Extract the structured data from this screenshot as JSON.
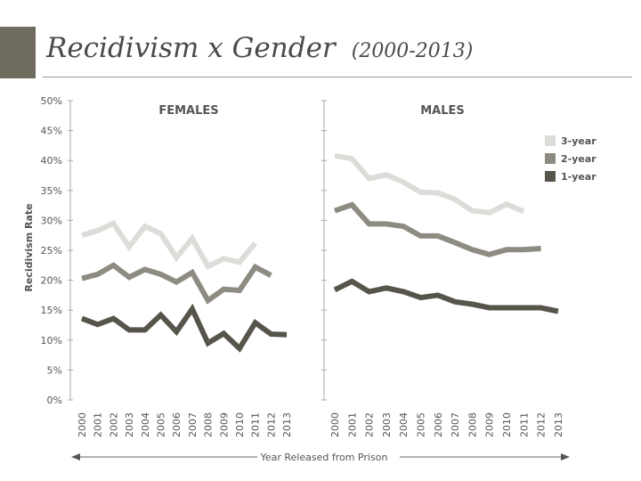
{
  "header": {
    "title": "Recidivism x Gender",
    "subtitle": "(2000-2013)"
  },
  "colors": {
    "three_year": "#dcdcd8",
    "two_year": "#8e8c82",
    "one_year": "#56544b",
    "axis": "#aaaaaa",
    "accent": "#6f6b5e",
    "text": "#555555"
  },
  "chart_data": {
    "type": "line",
    "ylabel": "Recidivism Rate",
    "xlabel": "Year Released from Prison",
    "ylim": [
      0,
      50
    ],
    "yticks": [
      "0%",
      "5%",
      "10%",
      "15%",
      "20%",
      "25%",
      "30%",
      "35%",
      "40%",
      "45%",
      "50%"
    ],
    "categories": [
      "2000",
      "2001",
      "2002",
      "2003",
      "2004",
      "2005",
      "2006",
      "2007",
      "2008",
      "2009",
      "2010",
      "2011",
      "2012",
      "2013"
    ],
    "legend": {
      "position": "right",
      "entries": [
        "3-year",
        "2-year",
        "1-year"
      ]
    },
    "panels": [
      {
        "name": "FEMALES",
        "series": [
          {
            "name": "3-year",
            "values": [
              27.5,
              28.3,
              29.5,
              25.6,
              29.0,
              27.8,
              23.8,
              27.0,
              22.3,
              23.6,
              23.0,
              26.2,
              null,
              null
            ]
          },
          {
            "name": "2-year",
            "values": [
              20.3,
              21.0,
              22.5,
              20.5,
              21.8,
              21.0,
              19.7,
              21.3,
              16.6,
              18.5,
              18.3,
              22.2,
              20.8,
              null
            ]
          },
          {
            "name": "1-year",
            "values": [
              13.6,
              12.6,
              13.6,
              11.7,
              11.7,
              14.2,
              11.4,
              15.2,
              9.5,
              11.1,
              8.6,
              12.9,
              11.0,
              10.9
            ]
          }
        ]
      },
      {
        "name": "MALES",
        "series": [
          {
            "name": "3-year",
            "values": [
              40.8,
              40.3,
              37.0,
              37.6,
              36.4,
              34.7,
              34.6,
              33.5,
              31.6,
              31.3,
              32.7,
              31.5,
              null,
              null
            ]
          },
          {
            "name": "2-year",
            "values": [
              31.6,
              32.6,
              29.4,
              29.4,
              29.0,
              27.4,
              27.4,
              26.3,
              25.1,
              24.3,
              25.1,
              25.1,
              25.3,
              null
            ]
          },
          {
            "name": "1-year",
            "values": [
              18.4,
              19.8,
              18.1,
              18.7,
              18.1,
              17.1,
              17.5,
              16.4,
              16.0,
              15.4,
              15.4,
              15.4,
              15.4,
              14.8
            ]
          }
        ]
      }
    ]
  }
}
